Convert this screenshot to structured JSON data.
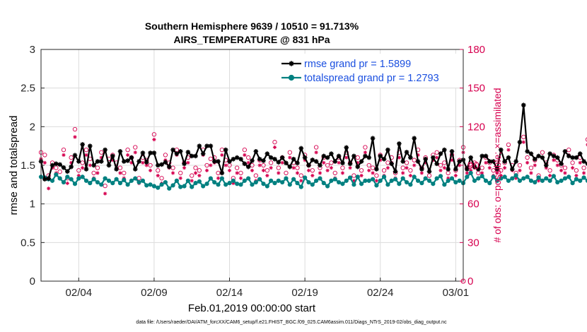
{
  "chart_data": {
    "type": "line",
    "title_line1": "Southern Hemisphere 9639 / 10510 = 91.713%",
    "title_line2": "AIRS_TEMPERATURE @ 831 hPa",
    "xlabel": "Feb.01,2019 00:00:00 start",
    "ylabel_left": "rmse and totalspread",
    "ylabel_right": "# of obs: o=possible; ×=assimilated",
    "footer": "data file: /Users/raeder/DAI/ATM_forcXX/CAM6_setup/f.e21.FHIST_BGC.f09_025.CAM6assim.011/Diags_NTrS_2019-02/obs_diag_output.nc",
    "x_axis": {
      "range_days": [
        0.5,
        28.5
      ],
      "tick_positions_days": [
        3,
        8,
        13,
        18,
        23,
        28
      ],
      "tick_labels": [
        "02/04",
        "02/09",
        "02/14",
        "02/19",
        "02/24",
        "03/01"
      ]
    },
    "y_left": {
      "range": [
        0,
        3
      ],
      "ticks": [
        0,
        0.5,
        1,
        1.5,
        2,
        2.5,
        3
      ],
      "tick_labels": [
        "0",
        "0.5",
        "1",
        "1.5",
        "2",
        "2.5",
        "3"
      ]
    },
    "y_right": {
      "range": [
        0,
        180
      ],
      "ticks": [
        0,
        30,
        60,
        90,
        120,
        150,
        180
      ],
      "tick_labels": [
        "0",
        "30",
        "60",
        "90",
        "120",
        "150",
        "180"
      ]
    },
    "grid": true,
    "legend_location": "top-right",
    "colors": {
      "rmse": "#000000",
      "spread": "#008080",
      "obs": "#d6004f",
      "legend_text": "#1a4fe0"
    },
    "series": [
      {
        "name": "rmse grand pr = 1.5899",
        "x_start_day": 0.5,
        "x_step_days": 0.25,
        "values": [
          1.55,
          1.32,
          1.33,
          1.5,
          1.52,
          1.51,
          1.47,
          1.42,
          1.48,
          1.63,
          1.55,
          1.77,
          1.45,
          1.75,
          1.5,
          1.55,
          1.55,
          1.7,
          1.5,
          1.62,
          1.45,
          1.68,
          1.55,
          1.56,
          1.6,
          1.45,
          1.55,
          1.66,
          1.54,
          1.66,
          1.66,
          1.5,
          1.51,
          1.54,
          1.48,
          1.7,
          1.65,
          1.68,
          1.52,
          1.67,
          1.62,
          1.62,
          1.75,
          1.65,
          1.75,
          1.75,
          1.55,
          1.55,
          1.4,
          1.7,
          1.55,
          1.58,
          1.6,
          1.58,
          1.52,
          1.48,
          1.56,
          1.68,
          1.58,
          1.56,
          1.65,
          1.6,
          1.58,
          1.54,
          1.6,
          1.53,
          1.48,
          1.58,
          1.53,
          1.72,
          1.6,
          1.5,
          1.57,
          1.55,
          1.5,
          1.62,
          1.6,
          1.65,
          1.55,
          1.62,
          1.53,
          1.73,
          1.52,
          1.62,
          1.48,
          1.55,
          1.62,
          1.6,
          1.85,
          1.45,
          1.62,
          1.58,
          1.7,
          1.52,
          1.42,
          1.78,
          1.55,
          1.67,
          1.6,
          1.85,
          1.55,
          1.45,
          1.58,
          1.42,
          1.6,
          1.52,
          1.65,
          1.7,
          1.45,
          1.68,
          1.45,
          1.55,
          1.57,
          1.45,
          1.6,
          1.48,
          1.45,
          1.62,
          1.62,
          1.55,
          1.55,
          1.45,
          1.7,
          1.55,
          1.6,
          1.45,
          1.55,
          1.8,
          2.28,
          1.68,
          1.65,
          1.58,
          1.62,
          1.6,
          1.5,
          1.65,
          1.62,
          1.6,
          1.52,
          1.68,
          1.62,
          1.6,
          1.6,
          1.65,
          1.55,
          1.52,
          1.62,
          1.58,
          1.6,
          1.55,
          1.65,
          1.52,
          1.45,
          1.6,
          1.55,
          1.58,
          1.6,
          1.62,
          1.5,
          1.62,
          1.58,
          1.62,
          1.65,
          1.58,
          1.55,
          1.52,
          1.45,
          1.67,
          1.62,
          1.55,
          1.6,
          1.68,
          1.52,
          1.58,
          1.55,
          1.63,
          1.55,
          1.62,
          1.5,
          1.62,
          1.6,
          1.68,
          1.65,
          1.6,
          1.5,
          1.48,
          1.45,
          1.62,
          1.72,
          1.55,
          1.55,
          1.58,
          1.62,
          1.55,
          1.5,
          1.38,
          1.55,
          1.6,
          1.62,
          1.78,
          1.55,
          1.5,
          1.6,
          1.58,
          1.52,
          1.5,
          1.55,
          1.45,
          1.65,
          1.5,
          1.42,
          1.45,
          1.62
        ]
      },
      {
        "name": "totalspread grand pr = 1.2793",
        "x_start_day": 0.5,
        "x_step_days": 0.25,
        "values": [
          1.35,
          1.34,
          1.32,
          1.3,
          1.38,
          1.33,
          1.28,
          1.35,
          1.32,
          1.26,
          1.33,
          1.35,
          1.3,
          1.27,
          1.32,
          1.28,
          1.25,
          1.33,
          1.3,
          1.27,
          1.32,
          1.27,
          1.31,
          1.25,
          1.3,
          1.33,
          1.28,
          1.3,
          1.24,
          1.25,
          1.23,
          1.21,
          1.25,
          1.28,
          1.2,
          1.24,
          1.3,
          1.22,
          1.23,
          1.3,
          1.22,
          1.27,
          1.29,
          1.23,
          1.26,
          1.33,
          1.28,
          1.25,
          1.33,
          1.25,
          1.27,
          1.3,
          1.26,
          1.25,
          1.3,
          1.33,
          1.25,
          1.28,
          1.32,
          1.26,
          1.23,
          1.3,
          1.27,
          1.3,
          1.28,
          1.33,
          1.25,
          1.32,
          1.27,
          1.22,
          1.34,
          1.28,
          1.25,
          1.3,
          1.33,
          1.27,
          1.23,
          1.3,
          1.32,
          1.28,
          1.26,
          1.3,
          1.34,
          1.25,
          1.35,
          1.26,
          1.3,
          1.3,
          1.32,
          1.24,
          1.3,
          1.35,
          1.25,
          1.3,
          1.32,
          1.26,
          1.33,
          1.28,
          1.25,
          1.35,
          1.3,
          1.27,
          1.33,
          1.3,
          1.26,
          1.33,
          1.36,
          1.25,
          1.3,
          1.33,
          1.28,
          1.3,
          1.27,
          1.35,
          1.4,
          1.3,
          1.33,
          1.36,
          1.3,
          1.27,
          1.35,
          1.3,
          1.33,
          1.35,
          1.3,
          1.33,
          1.37,
          1.3,
          1.33,
          1.35,
          1.3,
          1.28,
          1.34,
          1.3,
          1.33,
          1.3,
          1.36,
          1.28,
          1.3,
          1.33,
          1.35,
          1.27,
          1.32,
          1.3,
          1.34,
          1.3,
          1.33,
          1.28,
          1.32,
          1.35,
          1.3,
          1.34,
          1.3,
          1.35,
          1.38,
          1.3,
          1.28,
          1.35,
          1.32,
          1.3,
          1.35,
          1.3,
          1.33,
          1.3,
          1.34,
          1.27,
          1.32,
          1.35,
          1.3,
          1.28,
          1.33,
          1.3,
          1.27,
          1.35,
          1.3,
          1.32,
          1.34,
          1.28,
          1.3,
          1.35,
          1.27,
          1.32,
          1.3,
          1.25,
          1.35,
          1.3,
          1.28,
          1.33,
          1.3,
          1.3,
          1.26,
          1.33,
          1.28,
          1.3,
          1.25,
          1.22,
          1.18,
          1.15,
          1.2,
          1.22,
          1.18,
          1.24,
          1.3,
          1.32,
          1.28,
          1.35,
          1.3,
          1.33,
          1.35,
          1.3,
          1.32,
          1.35
        ]
      }
    ],
    "obs_possible": {
      "name": "o=possible",
      "x_start_day": 0.5,
      "x_step_days": 0.25,
      "values": [
        100,
        98,
        82,
        92,
        88,
        85,
        102,
        80,
        96,
        118,
        86,
        92,
        102,
        95,
        84,
        88,
        100,
        74,
        95,
        98,
        92,
        88,
        84,
        102,
        96,
        104,
        80,
        96,
        94,
        90,
        114,
        86,
        80,
        98,
        92,
        88,
        102,
        84,
        92,
        96,
        82,
        88,
        86,
        102,
        90,
        95,
        96,
        84,
        102,
        94,
        90,
        80,
        88,
        84,
        102,
        96,
        90,
        82,
        94,
        90,
        86,
        92,
        108,
        88,
        96,
        84,
        100,
        92,
        88,
        82,
        98,
        90,
        86,
        104,
        88,
        96,
        90,
        92,
        84,
        96,
        88,
        100,
        92,
        82,
        96,
        86,
        104,
        90,
        88,
        82,
        98,
        86,
        92,
        96,
        84,
        100,
        88,
        92,
        86,
        94,
        102,
        88,
        96,
        82,
        98,
        100,
        90,
        92,
        84,
        98,
        86,
        94,
        104,
        88,
        90,
        92,
        84,
        88,
        96,
        92,
        86,
        88,
        86,
        92,
        106,
        90,
        84,
        90,
        112,
        96,
        88,
        94,
        82,
        100,
        92,
        86,
        98,
        94,
        90,
        88,
        102,
        92,
        86,
        96,
        88,
        110,
        84,
        82,
        96,
        92,
        100,
        90,
        88,
        82,
        94,
        112,
        86,
        96,
        84,
        90,
        88,
        92,
        98,
        84,
        88,
        92,
        94,
        96,
        100,
        86,
        88,
        104,
        88,
        92,
        84,
        96,
        88,
        100,
        90,
        98,
        86,
        92,
        88,
        102,
        96,
        84,
        88,
        98,
        94,
        90,
        120,
        88,
        84,
        96,
        102,
        92,
        86,
        98,
        90,
        86,
        80,
        94,
        88,
        114,
        90,
        86,
        78,
        98
      ]
    },
    "obs_assimilated": {
      "name": "x=assimilated",
      "x_start_day": 0.5,
      "x_step_days": 0.25,
      "values": [
        95,
        92,
        72,
        88,
        84,
        80,
        98,
        76,
        92,
        112,
        82,
        88,
        98,
        90,
        80,
        84,
        96,
        68,
        90,
        94,
        88,
        84,
        80,
        98,
        92,
        100,
        76,
        92,
        90,
        86,
        110,
        82,
        76,
        94,
        88,
        84,
        98,
        80,
        88,
        92,
        78,
        84,
        82,
        98,
        86,
        90,
        92,
        80,
        98,
        90,
        86,
        76,
        84,
        80,
        98,
        92,
        86,
        78,
        90,
        86,
        82,
        88,
        104,
        84,
        92,
        80,
        96,
        88,
        84,
        78,
        94,
        86,
        82,
        100,
        84,
        92,
        86,
        88,
        80,
        92,
        84,
        96,
        88,
        78,
        92,
        82,
        100,
        86,
        84,
        78,
        94,
        82,
        88,
        92,
        80,
        96,
        84,
        88,
        82,
        90,
        98,
        84,
        92,
        78,
        94,
        96,
        86,
        88,
        80,
        94,
        82,
        90,
        100,
        84,
        86,
        88,
        80,
        84,
        92,
        88,
        82,
        84,
        82,
        88,
        102,
        86,
        80,
        86,
        108,
        92,
        84,
        90,
        78,
        96,
        88,
        82,
        94,
        90,
        86,
        84,
        98,
        88,
        82,
        92,
        84,
        106,
        80,
        78,
        92,
        88,
        96,
        86,
        84,
        78,
        90,
        108,
        82,
        92,
        80,
        86,
        84,
        88,
        94,
        80,
        84,
        88,
        90,
        92,
        96,
        82,
        84,
        100,
        84,
        88,
        80,
        92,
        84,
        96,
        86,
        94,
        82,
        88,
        84,
        98,
        92,
        80,
        84,
        94,
        90,
        86,
        116,
        84,
        80,
        92,
        98,
        88,
        82,
        94,
        86,
        82,
        76,
        90,
        84,
        110,
        86,
        82,
        74,
        94
      ]
    }
  }
}
